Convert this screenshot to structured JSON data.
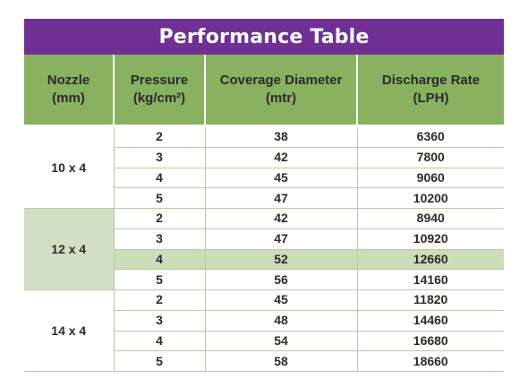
{
  "title": "Performance Table",
  "headers": [
    [
      "Nozzle",
      "(mm)"
    ],
    [
      "Pressure",
      "(kg/cm²)"
    ],
    [
      "Coverage Diameter",
      "(mtr)"
    ],
    [
      "Discharge Rate",
      "(LPH)"
    ]
  ],
  "groups": [
    {
      "nozzle": "10 x 4",
      "rows": [
        {
          "pressure": "2",
          "coverage": "38",
          "discharge": "6360"
        },
        {
          "pressure": "3",
          "coverage": "42",
          "discharge": "7800"
        },
        {
          "pressure": "4",
          "coverage": "45",
          "discharge": "9060"
        },
        {
          "pressure": "5",
          "coverage": "47",
          "discharge": "10200"
        }
      ]
    },
    {
      "nozzle": "12 x 4",
      "rows": [
        {
          "pressure": "2",
          "coverage": "42",
          "discharge": "8940"
        },
        {
          "pressure": "3",
          "coverage": "47",
          "discharge": "10920"
        },
        {
          "pressure": "4",
          "coverage": "52",
          "discharge": "12660",
          "highlight": true
        },
        {
          "pressure": "5",
          "coverage": "56",
          "discharge": "14160"
        }
      ]
    },
    {
      "nozzle": "14 x 4",
      "rows": [
        {
          "pressure": "2",
          "coverage": "45",
          "discharge": "11820"
        },
        {
          "pressure": "3",
          "coverage": "48",
          "discharge": "14460"
        },
        {
          "pressure": "4",
          "coverage": "54",
          "discharge": "16680"
        },
        {
          "pressure": "5",
          "coverage": "58",
          "discharge": "18660"
        }
      ]
    }
  ],
  "colors": {
    "title_bg": "#6f2f95",
    "header_bg": "#88b260",
    "group_bg": "#d3dfc4",
    "highlight_bg": "#cddcb9"
  }
}
